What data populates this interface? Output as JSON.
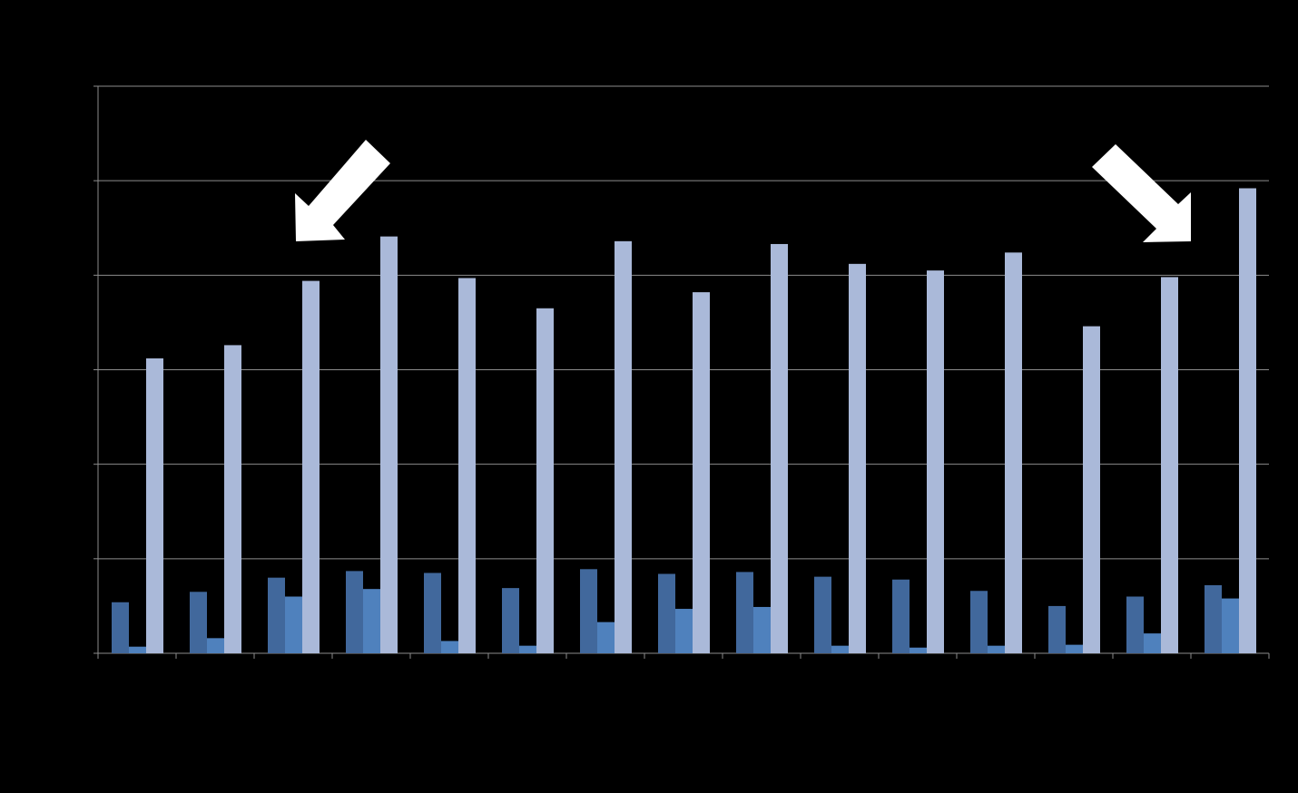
{
  "chart_data": {
    "type": "bar",
    "categories": [
      null,
      null,
      null,
      null,
      null,
      null,
      null,
      null,
      null,
      null,
      null,
      null,
      null,
      null,
      null
    ],
    "series": [
      {
        "color": "#41689c",
        "values": [
          5.4,
          6.5,
          8.0,
          8.7,
          8.5,
          6.9,
          8.9,
          8.4,
          8.6,
          8.1,
          7.8,
          6.6,
          5.0,
          6.0,
          7.2
        ]
      },
      {
        "color": "#4f81bd",
        "values": [
          0.7,
          1.6,
          6.0,
          6.8,
          1.3,
          0.8,
          3.3,
          4.7,
          4.9,
          0.8,
          0.6,
          0.8,
          0.9,
          2.1,
          5.8
        ]
      },
      {
        "color": "#aab9d9",
        "values": [
          31.2,
          32.6,
          39.4,
          44.1,
          39.7,
          36.5,
          43.6,
          38.2,
          43.3,
          41.2,
          40.5,
          42.4,
          34.6,
          39.8,
          49.2
        ]
      }
    ],
    "ylim": [
      0,
      60
    ],
    "yticks": [
      0,
      10,
      20,
      30,
      40,
      50,
      60
    ],
    "grid": true
  }
}
